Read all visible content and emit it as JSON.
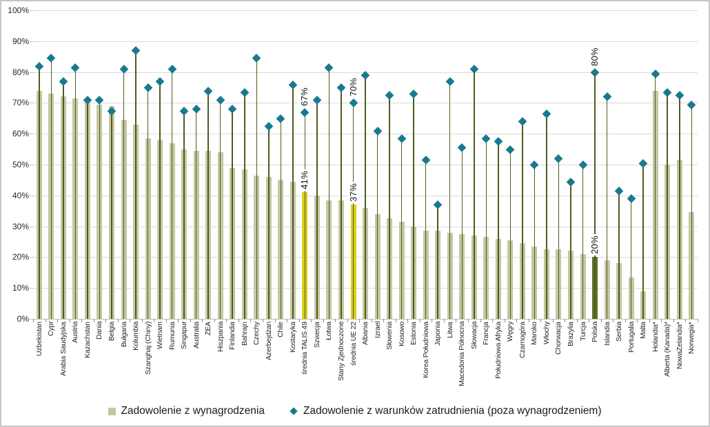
{
  "chart_data": {
    "type": "bar",
    "title": "",
    "xlabel": "",
    "ylabel": "",
    "ylim": [
      0,
      100
    ],
    "grid": true,
    "legend_position": "bottom",
    "y_ticks": [
      "0%",
      "10%",
      "20%",
      "30%",
      "40%",
      "50%",
      "60%",
      "70%",
      "80%",
      "90%",
      "100%"
    ],
    "categories": [
      "Uzbekistan",
      "Cypr",
      "Arabia Saudyjska",
      "Austria",
      "Kazachstan",
      "Dania",
      "Belgia",
      "Bułgaria",
      "Kolumbia",
      "Szanghaj (Chiny)",
      "Wietnam",
      "Rumunia",
      "Singapur",
      "Australia",
      "ZEA",
      "Hiszpania",
      "Finlandia",
      "Bahrajn",
      "Czechy",
      "Azerbejdżan",
      "Chile",
      "Kostaryka",
      "średnia TALIS 49",
      "Szwecja",
      "Łotwa",
      "Stany Zjednoczone",
      "średnia UE 22",
      "Albania",
      "Izrael",
      "Słowenia",
      "Kosowo",
      "Estonia",
      "Korea Południowa",
      "Japonia",
      "Litwa",
      "Macedonia Północna",
      "Słowacja",
      "Francja",
      "Południowa Afryka",
      "Węgry",
      "Czarnogóra",
      "Maroko",
      "Włochy",
      "Chorwacja",
      "Brazylia",
      "Turcja",
      "Polska",
      "Islandia",
      "Serbia",
      "Portugalia",
      "Malta",
      "Holandia*",
      "Alberta (Kanada)*",
      "NowaZelandia*",
      "Norwegia*"
    ],
    "series": [
      {
        "name": "Zadowolenie z wynagrodzenia",
        "type": "bar",
        "values": [
          74,
          73,
          72,
          71.5,
          71,
          69.5,
          69,
          64.5,
          63,
          58.5,
          58,
          57,
          55,
          54.5,
          54.5,
          54,
          49,
          48.5,
          46.5,
          46,
          45,
          44.5,
          41,
          40,
          38.5,
          38.5,
          37,
          36,
          34,
          32.5,
          31.5,
          30,
          28.5,
          28.5,
          28,
          27.5,
          27,
          26.5,
          26,
          25.5,
          24.5,
          23.5,
          22.5,
          22.5,
          22,
          21,
          20,
          19,
          18,
          13.5,
          9,
          74,
          50,
          51.5,
          34.5
        ]
      },
      {
        "name": "Zadowolenie z warunków zatrudnienia (poza wynagrodzeniem)",
        "type": "scatter",
        "values": [
          82,
          84.5,
          77,
          81.5,
          71,
          71,
          67.5,
          81,
          87,
          75,
          77,
          81,
          67.5,
          68,
          74,
          71,
          68,
          73.5,
          84.5,
          62.5,
          65,
          76,
          67,
          71,
          81.5,
          75,
          70,
          79,
          61,
          72.5,
          58.5,
          73,
          51.5,
          37,
          77,
          55.5,
          81,
          58.5,
          57.5,
          55,
          64,
          50,
          66.5,
          52,
          44.5,
          50,
          80,
          72,
          41.5,
          39,
          50.5,
          79.5,
          73.5,
          72.5,
          69.5
        ]
      }
    ],
    "bar_styles": {
      "22": "highlight",
      "26": "highlight",
      "46": "poland"
    },
    "annotations": [
      {
        "index": 22,
        "bar_label": "41%",
        "marker_label": "67%"
      },
      {
        "index": 26,
        "bar_label": "37%",
        "marker_label": "70%"
      },
      {
        "index": 46,
        "bar_label": "20%",
        "marker_label": "80%"
      }
    ]
  },
  "legend": {
    "bar_label": "Zadowolenie z wynagrodzenia",
    "marker_label": "Zadowolenie z warunków zatrudnienia (poza wynagrodzeniem)"
  },
  "colors": {
    "bar": "#c5c7a2",
    "bar_highlight": "#d9cf1f",
    "bar_poland": "#5c7228",
    "stem": "#4e5b1d",
    "marker": "#187a8e",
    "gridline": "#d9d9d9",
    "axis_line": "#bfbfbf",
    "tick": "#8c8c8c",
    "text": "#262626"
  }
}
